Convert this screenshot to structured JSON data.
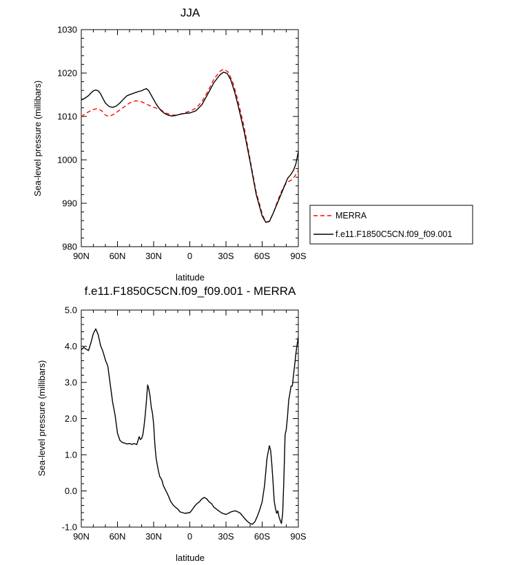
{
  "chart_data": [
    {
      "type": "line",
      "title": "JJA",
      "xlabel": "latitude",
      "ylabel": "Sea-level pressure (millibars)",
      "xlim": [
        90,
        -90
      ],
      "ylim": [
        980,
        1030
      ],
      "x_ticks": [
        90,
        60,
        30,
        0,
        -30,
        -60,
        -90
      ],
      "x_tick_labels": [
        "90N",
        "60N",
        "30N",
        "0",
        "30S",
        "60S",
        "90S"
      ],
      "y_ticks": [
        980,
        990,
        1000,
        1010,
        1020,
        1030
      ],
      "y_tick_labels": [
        "980",
        "990",
        "1000",
        "1010",
        "1020",
        "1030"
      ],
      "legend_position": "right",
      "series": [
        {
          "name": "MERRA",
          "color": "#ff0000",
          "dash": "dashed",
          "x": [
            90,
            87,
            83,
            80,
            77,
            73,
            70,
            67,
            63,
            60,
            55,
            50,
            45,
            40,
            35,
            30,
            25,
            20,
            15,
            10,
            5,
            0,
            -5,
            -10,
            -15,
            -20,
            -25,
            -28,
            -32,
            -36,
            -40,
            -45,
            -50,
            -55,
            -60,
            -63,
            -66,
            -69,
            -72,
            -75,
            -78,
            -81,
            -84,
            -87,
            -90
          ],
          "y": [
            1009.9,
            1010.6,
            1011.2,
            1011.6,
            1011.8,
            1011.3,
            1010.3,
            1010.0,
            1010.5,
            1011.1,
            1012.1,
            1013.1,
            1013.6,
            1013.4,
            1012.7,
            1012.1,
            1011.7,
            1010.8,
            1010.3,
            1010.3,
            1010.8,
            1011.2,
            1011.9,
            1013.4,
            1015.8,
            1018.6,
            1020.4,
            1020.9,
            1020.2,
            1017.6,
            1013.6,
            1007.6,
            1000.1,
            992.6,
            987.6,
            985.6,
            985.9,
            987.6,
            989.9,
            992.1,
            993.9,
            994.9,
            995.3,
            996.2,
            997.6
          ]
        },
        {
          "name": "f.e11.F1850C5CN.f09_f09.001",
          "color": "#000000",
          "dash": "solid",
          "x": [
            90,
            87,
            84,
            82,
            80,
            78,
            76,
            74,
            72,
            70,
            67,
            64,
            61,
            58,
            55,
            52,
            48,
            44,
            42,
            40,
            38,
            36,
            34,
            32,
            30,
            28,
            26,
            24,
            21,
            18,
            15,
            12,
            8,
            4,
            0,
            -5,
            -10,
            -15,
            -20,
            -25,
            -28,
            -31,
            -34,
            -37,
            -40,
            -45,
            -50,
            -55,
            -60,
            -63,
            -66,
            -69,
            -72,
            -75,
            -78,
            -81,
            -84,
            -86,
            -88,
            -90
          ],
          "y": [
            1013.8,
            1014.2,
            1014.8,
            1015.4,
            1015.9,
            1016.1,
            1015.9,
            1015.2,
            1014.1,
            1013.1,
            1012.3,
            1012.1,
            1012.4,
            1013.1,
            1014.0,
            1014.8,
            1015.2,
            1015.6,
            1015.8,
            1015.9,
            1016.2,
            1016.4,
            1015.9,
            1014.9,
            1013.9,
            1012.9,
            1012.1,
            1011.4,
            1010.7,
            1010.3,
            1010.1,
            1010.2,
            1010.5,
            1010.7,
            1010.8,
            1011.3,
            1012.7,
            1015.2,
            1017.8,
            1019.6,
            1020.2,
            1019.9,
            1018.4,
            1015.8,
            1012.6,
            1006.6,
            999.6,
            992.1,
            987.1,
            985.6,
            985.8,
            987.6,
            989.6,
            991.6,
            993.6,
            995.7,
            996.7,
            997.6,
            999.1,
            1001.9
          ]
        }
      ]
    },
    {
      "type": "line",
      "title": "f.e11.F1850C5CN.f09_f09.001 - MERRA",
      "xlabel": "latitude",
      "ylabel": "Sea-level pressure (millibars)",
      "xlim": [
        90,
        -90
      ],
      "ylim": [
        -1.0,
        5.0
      ],
      "x_ticks": [
        90,
        60,
        30,
        0,
        -30,
        -60,
        -90
      ],
      "x_tick_labels": [
        "90N",
        "60N",
        "30N",
        "0",
        "30S",
        "60S",
        "90S"
      ],
      "y_ticks": [
        -1.0,
        0.0,
        1.0,
        2.0,
        3.0,
        4.0,
        5.0
      ],
      "y_tick_labels": [
        "-1.0",
        "0.0",
        "1.0",
        "2.0",
        "3.0",
        "4.0",
        "5.0"
      ],
      "series": [
        {
          "color": "#000000",
          "dash": "solid",
          "x": [
            90,
            88,
            86,
            84,
            82,
            80,
            78,
            76,
            74,
            72,
            70,
            68,
            66,
            64,
            62,
            60,
            58,
            56,
            54,
            52,
            50,
            48,
            46,
            44,
            42,
            41,
            40,
            39,
            38,
            37,
            36,
            35,
            34,
            33,
            32,
            31,
            30,
            29,
            28,
            27,
            26,
            25,
            24,
            23,
            22,
            21,
            20,
            18,
            16,
            14,
            12,
            10,
            8,
            6,
            4,
            2,
            0,
            -2,
            -4,
            -6,
            -8,
            -10,
            -12,
            -14,
            -16,
            -18,
            -20,
            -22,
            -24,
            -26,
            -28,
            -30,
            -32,
            -34,
            -36,
            -38,
            -40,
            -42,
            -44,
            -46,
            -48,
            -50,
            -52,
            -54,
            -56,
            -58,
            -60,
            -62,
            -64,
            -66,
            -67,
            -68,
            -69,
            -70,
            -71,
            -72,
            -73,
            -74,
            -75,
            -76,
            -77,
            -78,
            -79,
            -80,
            -81,
            -82,
            -83,
            -84,
            -85,
            -86,
            -87,
            -88,
            -89,
            -90
          ],
          "y": [
            3.9,
            3.97,
            3.92,
            3.88,
            4.1,
            4.35,
            4.48,
            4.32,
            4.02,
            3.85,
            3.62,
            3.45,
            2.95,
            2.45,
            2.1,
            1.6,
            1.4,
            1.34,
            1.32,
            1.3,
            1.31,
            1.29,
            1.31,
            1.28,
            1.5,
            1.42,
            1.45,
            1.55,
            1.78,
            2.1,
            2.48,
            2.93,
            2.82,
            2.62,
            2.32,
            2.15,
            1.85,
            1.28,
            0.92,
            0.72,
            0.55,
            0.4,
            0.35,
            0.28,
            0.15,
            0.08,
            0.02,
            -0.12,
            -0.28,
            -0.38,
            -0.45,
            -0.5,
            -0.58,
            -0.6,
            -0.62,
            -0.61,
            -0.6,
            -0.52,
            -0.42,
            -0.35,
            -0.3,
            -0.22,
            -0.18,
            -0.22,
            -0.3,
            -0.35,
            -0.45,
            -0.5,
            -0.55,
            -0.6,
            -0.63,
            -0.65,
            -0.62,
            -0.58,
            -0.56,
            -0.55,
            -0.58,
            -0.62,
            -0.7,
            -0.78,
            -0.85,
            -0.9,
            -0.92,
            -0.85,
            -0.7,
            -0.52,
            -0.3,
            0.15,
            0.9,
            1.25,
            1.12,
            0.75,
            0.25,
            -0.28,
            -0.48,
            -0.62,
            -0.55,
            -0.72,
            -0.82,
            -0.9,
            -0.62,
            0.3,
            1.55,
            1.7,
            2.05,
            2.5,
            2.7,
            2.9,
            2.9,
            3.2,
            3.5,
            3.8,
            4.05,
            4.25
          ]
        }
      ]
    }
  ]
}
